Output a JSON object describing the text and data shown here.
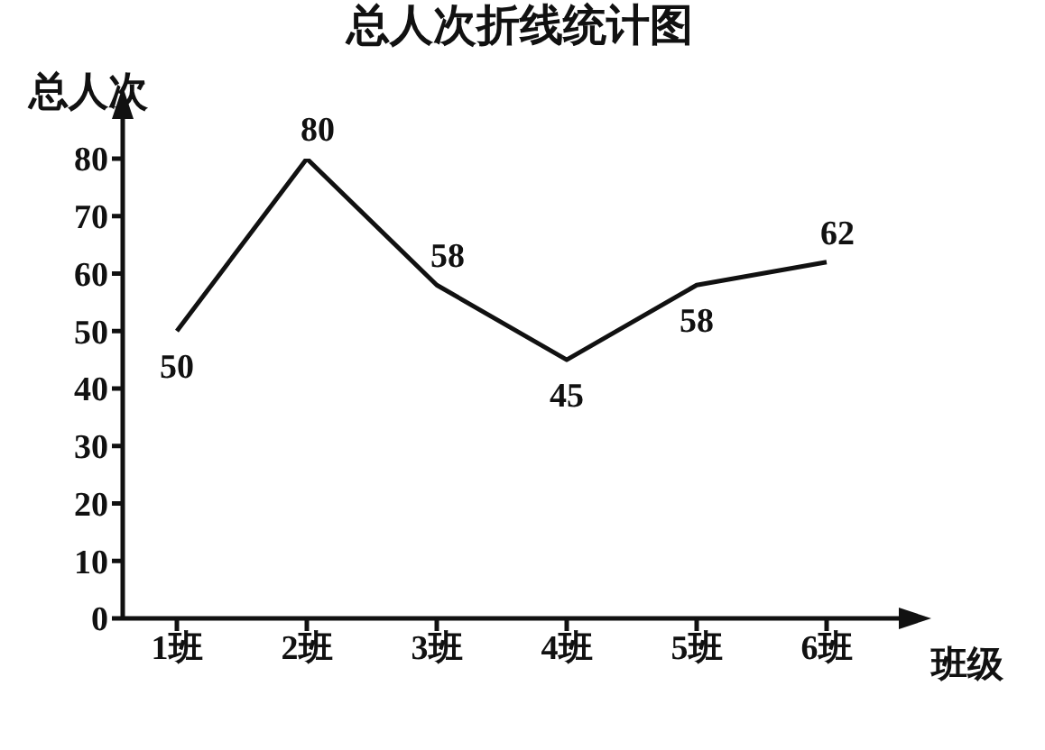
{
  "chart_data": {
    "type": "line",
    "title": "总人次折线统计图",
    "xlabel": "班级",
    "ylabel": "总人次",
    "categories": [
      "1班",
      "2班",
      "3班",
      "4班",
      "5班",
      "6班"
    ],
    "values": [
      50,
      80,
      58,
      45,
      58,
      62
    ],
    "color": "#111111",
    "ylim": [
      0,
      80
    ],
    "yticks": [
      0,
      10,
      20,
      30,
      40,
      50,
      60,
      70,
      80
    ],
    "data_labels": true,
    "grid": false,
    "marker": "none",
    "line_style": "solid"
  }
}
